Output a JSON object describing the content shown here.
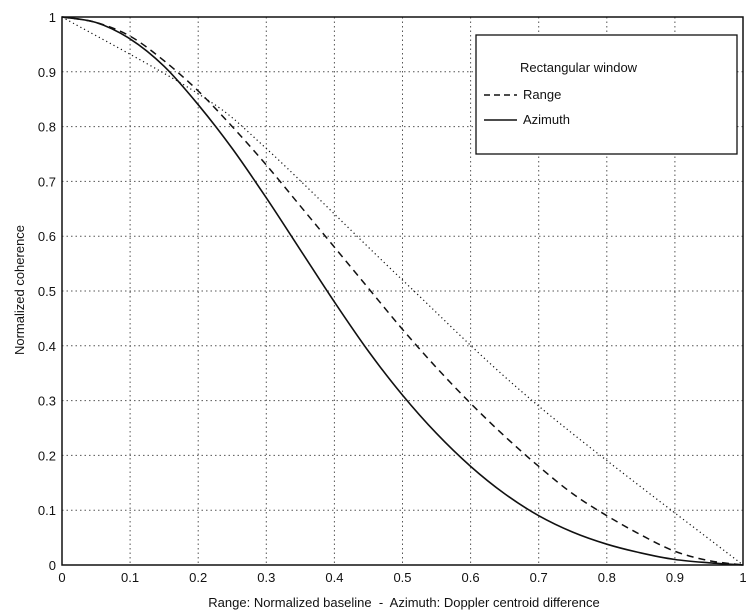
{
  "chart_data": {
    "type": "line",
    "title": "",
    "xlabel": "Range: Normalized baseline  -  Azimuth: Doppler centroid difference",
    "ylabel": "Normalized coherence",
    "xlim": [
      0,
      1
    ],
    "ylim": [
      0,
      1
    ],
    "grid": true,
    "legend_position": "top-right",
    "legend_title": "Rectangular window",
    "xticks": [
      "0",
      "0.1",
      "0.2",
      "0.3",
      "0.4",
      "0.5",
      "0.6",
      "0.7",
      "0.8",
      "0.9",
      "1"
    ],
    "yticks": [
      "0",
      "0.1",
      "0.2",
      "0.3",
      "0.4",
      "0.5",
      "0.6",
      "0.7",
      "0.8",
      "0.9",
      "1"
    ],
    "series": [
      {
        "name": "Range",
        "style": "dashed",
        "x": [
          0,
          0.05,
          0.1,
          0.15,
          0.2,
          0.25,
          0.3,
          0.35,
          0.4,
          0.45,
          0.5,
          0.55,
          0.6,
          0.65,
          0.7,
          0.75,
          0.8,
          0.85,
          0.9,
          0.95,
          1.0
        ],
        "y": [
          1.0,
          0.99,
          0.965,
          0.92,
          0.865,
          0.8,
          0.73,
          0.655,
          0.58,
          0.505,
          0.43,
          0.36,
          0.295,
          0.235,
          0.18,
          0.13,
          0.09,
          0.055,
          0.025,
          0.008,
          0.0
        ]
      },
      {
        "name": "Azimuth",
        "style": "solid",
        "x": [
          0,
          0.05,
          0.1,
          0.15,
          0.2,
          0.25,
          0.3,
          0.35,
          0.4,
          0.45,
          0.5,
          0.55,
          0.6,
          0.65,
          0.7,
          0.75,
          0.8,
          0.85,
          0.9,
          0.95,
          1.0
        ],
        "y": [
          1.0,
          0.99,
          0.96,
          0.91,
          0.84,
          0.76,
          0.67,
          0.575,
          0.48,
          0.39,
          0.31,
          0.24,
          0.18,
          0.13,
          0.09,
          0.06,
          0.038,
          0.022,
          0.01,
          0.004,
          0.0
        ]
      },
      {
        "style": "dotted",
        "x": [
          0,
          0.2,
          0.3,
          0.5,
          0.7,
          1.0
        ],
        "y": [
          1.0,
          0.86,
          0.76,
          0.52,
          0.29,
          0.0
        ]
      }
    ]
  }
}
